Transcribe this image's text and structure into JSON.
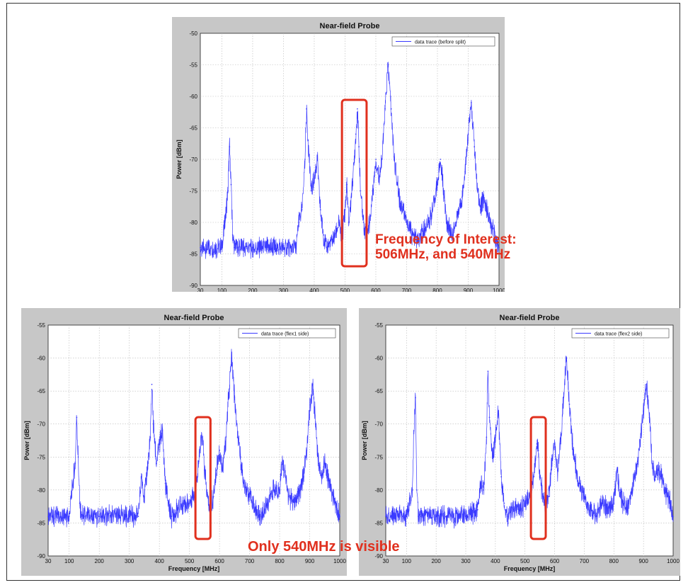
{
  "annotations": {
    "top_callout_line1": "Frequency of Interest:",
    "top_callout_line2": "506MHz, and 540MHz",
    "bottom_callout": "Only 540MHz is visible",
    "highlight_color": "#e0301e"
  },
  "chart_data": [
    {
      "type": "line",
      "title": "Near-field Probe",
      "xlabel": "Frequency [MHz]",
      "ylabel": "Power [dBm]",
      "xlim": [
        30,
        1000
      ],
      "ylim": [
        -90,
        -50
      ],
      "xticks": [
        "30",
        "100",
        "200",
        "300",
        "400",
        "500",
        "600",
        "700",
        "800",
        "900",
        "1000"
      ],
      "yticks": [
        "-50",
        "-55",
        "-60",
        "-65",
        "-70",
        "-75",
        "-80",
        "-85",
        "-90"
      ],
      "grid": true,
      "legend_position": "top-right",
      "highlight_x_range": [
        490,
        570
      ],
      "series": [
        {
          "name": "data trace (before split)",
          "color": "#3a3aff",
          "x": [
            30,
            100,
            110,
            120,
            125,
            130,
            135,
            140,
            150,
            200,
            300,
            340,
            350,
            360,
            370,
            375,
            380,
            390,
            400,
            410,
            420,
            430,
            440,
            460,
            480,
            490,
            500,
            506,
            512,
            520,
            530,
            535,
            540,
            545,
            550,
            560,
            570,
            580,
            590,
            600,
            610,
            620,
            630,
            640,
            650,
            660,
            670,
            680,
            690,
            700,
            720,
            740,
            760,
            780,
            800,
            805,
            810,
            820,
            830,
            850,
            860,
            880,
            890,
            900,
            910,
            920,
            930,
            940,
            950,
            960,
            970,
            980,
            990,
            1000
          ],
          "y": [
            -84,
            -84,
            -80,
            -75,
            -68,
            -74,
            -82,
            -84,
            -84,
            -84,
            -84,
            -84,
            -80,
            -78,
            -70,
            -62,
            -67,
            -75,
            -73,
            -70,
            -78,
            -82,
            -84,
            -83,
            -80,
            -83,
            -78,
            -74,
            -80,
            -76,
            -70,
            -66,
            -62,
            -68,
            -75,
            -80,
            -82,
            -80,
            -75,
            -70,
            -73,
            -70,
            -62,
            -55,
            -62,
            -70,
            -74,
            -77,
            -78,
            -80,
            -82,
            -83,
            -81,
            -79,
            -74,
            -72,
            -70,
            -75,
            -80,
            -82,
            -80,
            -76,
            -72,
            -66,
            -61,
            -68,
            -75,
            -78,
            -76,
            -78,
            -80,
            -81,
            -83,
            -84
          ]
        }
      ]
    },
    {
      "type": "line",
      "title": "Near-field Probe",
      "xlabel": "Frequency [MHz]",
      "ylabel": "Power [dBm]",
      "xlim": [
        30,
        1000
      ],
      "ylim": [
        -90,
        -55
      ],
      "xticks": [
        "30",
        "100",
        "200",
        "300",
        "400",
        "500",
        "600",
        "700",
        "800",
        "900",
        "1000"
      ],
      "yticks": [
        "-55",
        "-60",
        "-65",
        "-70",
        "-75",
        "-80",
        "-85",
        "-90"
      ],
      "grid": true,
      "legend_position": "top-right",
      "highlight_x_range": [
        520,
        570
      ],
      "series": [
        {
          "name": "data trace (flex1 side)",
          "color": "#3a3aff",
          "x": [
            30,
            100,
            110,
            120,
            125,
            130,
            135,
            140,
            150,
            200,
            300,
            330,
            340,
            350,
            360,
            370,
            375,
            380,
            390,
            400,
            410,
            420,
            430,
            440,
            460,
            480,
            500,
            520,
            530,
            540,
            545,
            550,
            560,
            570,
            580,
            590,
            600,
            610,
            620,
            630,
            640,
            650,
            660,
            670,
            680,
            690,
            700,
            720,
            740,
            760,
            780,
            800,
            805,
            810,
            820,
            830,
            850,
            860,
            880,
            890,
            900,
            910,
            920,
            930,
            940,
            950,
            960,
            970,
            980,
            990,
            1000
          ],
          "y": [
            -84,
            -84,
            -80,
            -76,
            -69,
            -75,
            -82,
            -84,
            -84,
            -84,
            -84,
            -84,
            -78,
            -81,
            -77,
            -72,
            -64,
            -70,
            -76,
            -73,
            -71,
            -79,
            -82,
            -84,
            -83,
            -82,
            -82,
            -80,
            -76,
            -72,
            -73,
            -77,
            -81,
            -83,
            -81,
            -77,
            -74,
            -77,
            -73,
            -66,
            -60,
            -66,
            -72,
            -75,
            -79,
            -80,
            -81,
            -83,
            -84,
            -82,
            -80,
            -80,
            -77,
            -76,
            -78,
            -81,
            -82,
            -81,
            -78,
            -74,
            -68,
            -64,
            -70,
            -76,
            -78,
            -76,
            -78,
            -80,
            -81,
            -83,
            -84
          ]
        }
      ]
    },
    {
      "type": "line",
      "title": "Near-field Probe",
      "xlabel": "Frequency [MHz]",
      "ylabel": "Power [dBm]",
      "xlim": [
        30,
        1000
      ],
      "ylim": [
        -90,
        -55
      ],
      "xticks": [
        "30",
        "100",
        "200",
        "300",
        "400",
        "500",
        "600",
        "700",
        "800",
        "900",
        "1000"
      ],
      "yticks": [
        "-55",
        "-60",
        "-65",
        "-70",
        "-75",
        "-80",
        "-85",
        "-90"
      ],
      "grid": true,
      "legend_position": "top-right",
      "highlight_x_range": [
        520,
        570
      ],
      "series": [
        {
          "name": "data trace (flex2 side)",
          "color": "#3a3aff",
          "x": [
            30,
            100,
            110,
            120,
            125,
            130,
            135,
            140,
            150,
            200,
            300,
            340,
            350,
            360,
            370,
            375,
            380,
            390,
            400,
            410,
            420,
            430,
            440,
            460,
            480,
            500,
            520,
            530,
            540,
            545,
            550,
            560,
            570,
            580,
            590,
            600,
            610,
            620,
            630,
            640,
            650,
            660,
            670,
            680,
            690,
            700,
            720,
            740,
            760,
            780,
            800,
            810,
            820,
            830,
            850,
            860,
            880,
            890,
            900,
            910,
            920,
            930,
            940,
            950,
            960,
            970,
            980,
            990,
            1000
          ],
          "y": [
            -84,
            -84,
            -82,
            -80,
            -71,
            -66,
            -80,
            -84,
            -84,
            -84,
            -84,
            -83,
            -79,
            -80,
            -72,
            -62,
            -69,
            -75,
            -72,
            -68,
            -78,
            -82,
            -84,
            -83,
            -83,
            -82,
            -80,
            -78,
            -73,
            -74,
            -78,
            -81,
            -83,
            -81,
            -76,
            -73,
            -77,
            -73,
            -66,
            -60,
            -67,
            -73,
            -76,
            -79,
            -80,
            -81,
            -83,
            -84,
            -82,
            -83,
            -82,
            -77,
            -80,
            -82,
            -82,
            -80,
            -76,
            -72,
            -68,
            -64,
            -69,
            -76,
            -78,
            -77,
            -78,
            -80,
            -81,
            -82,
            -84
          ]
        }
      ]
    }
  ]
}
